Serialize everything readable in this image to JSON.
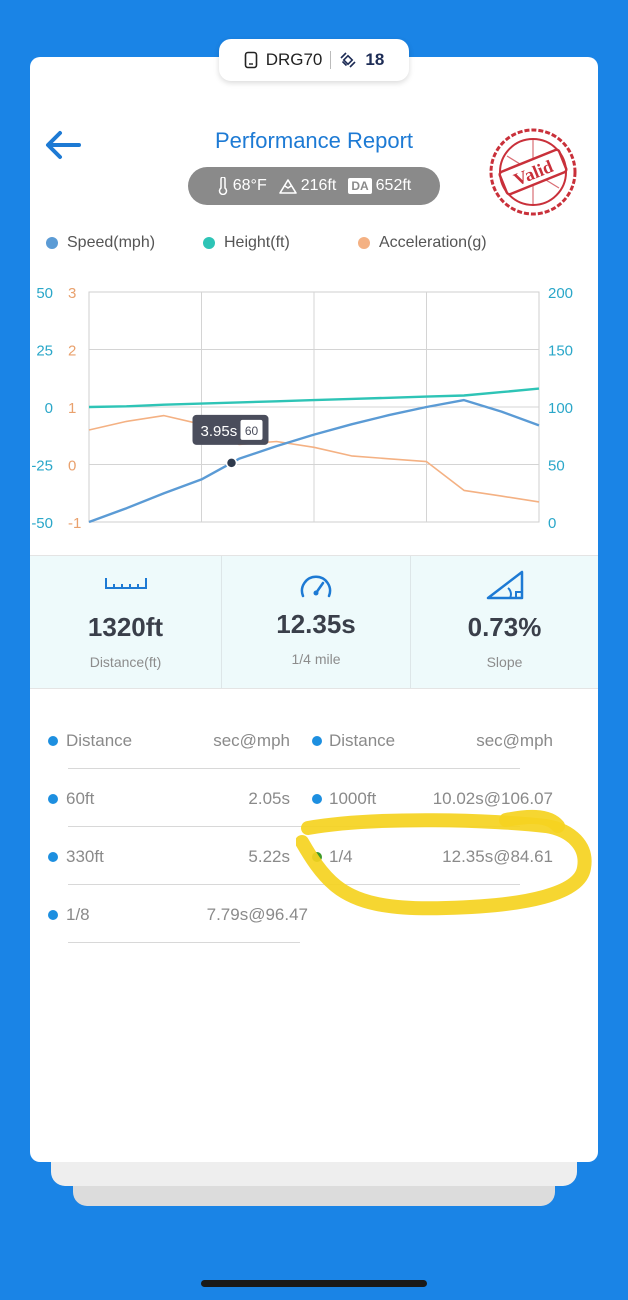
{
  "device": {
    "name": "DRG70",
    "count": "18"
  },
  "header": {
    "title": "Performance Report",
    "stamp_text": "Valid"
  },
  "conditions": {
    "temperature": "68°F",
    "altitude": "216ft",
    "da_label": "DA",
    "density_altitude": "652ft"
  },
  "legend": [
    {
      "label": "Speed(mph)",
      "color": "#5b9bd5"
    },
    {
      "label": "Height(ft)",
      "color": "#2ec4b6"
    },
    {
      "label": "Acceleration(g)",
      "color": "#f4b183"
    }
  ],
  "chart_data": {
    "type": "line",
    "left_axis_teal": {
      "ticks": [
        "50",
        "25",
        "0",
        "-25",
        "-50"
      ],
      "range": [
        -50,
        50
      ]
    },
    "left_axis_orange": {
      "ticks": [
        "3",
        "2",
        "1",
        "0",
        "-1"
      ],
      "range": [
        -1,
        3
      ]
    },
    "right_axis": {
      "ticks": [
        "200",
        "150",
        "100",
        "50",
        "0"
      ],
      "range": [
        0,
        200
      ]
    },
    "x": [
      0,
      1,
      2,
      3,
      4,
      5,
      6,
      7,
      8,
      9,
      10,
      11,
      12
    ],
    "series": [
      {
        "name": "Speed(mph)",
        "axis": "right",
        "values": [
          0,
          12,
          25,
          37,
          55,
          66,
          76,
          85,
          93,
          100,
          106,
          96,
          84
        ]
      },
      {
        "name": "Height(ft)",
        "axis": "left_teal",
        "values": [
          0,
          0.3,
          1,
          1.5,
          2,
          2.5,
          3,
          3.5,
          4,
          4.5,
          5,
          6.5,
          8
        ]
      },
      {
        "name": "Acceleration(g)",
        "axis": "left_orange",
        "values": [
          0.6,
          0.75,
          0.85,
          0.7,
          0.35,
          0.4,
          0.3,
          0.15,
          0.1,
          0.05,
          -0.45,
          -0.55,
          -0.65
        ]
      }
    ],
    "tooltip": {
      "time": "3.95s",
      "value": "60"
    }
  },
  "stats": [
    {
      "value": "1320ft",
      "label": "Distance(ft)",
      "icon": "ruler-icon"
    },
    {
      "value": "12.35s",
      "label": "1/4 mile",
      "icon": "speedometer-icon"
    },
    {
      "value": "0.73%",
      "label": "Slope",
      "icon": "slope-icon"
    }
  ],
  "splits": {
    "header": {
      "col1": "Distance",
      "col2": "sec@mph"
    },
    "left": [
      {
        "distance": "60ft",
        "value": "2.05s"
      },
      {
        "distance": "330ft",
        "value": "5.22s"
      },
      {
        "distance": "1/8",
        "value": "7.79s@96.47"
      }
    ],
    "right": [
      {
        "distance": "1000ft",
        "value": "10.02s@106.07"
      },
      {
        "distance": "1/4",
        "value": "12.35s@84.61"
      }
    ]
  }
}
